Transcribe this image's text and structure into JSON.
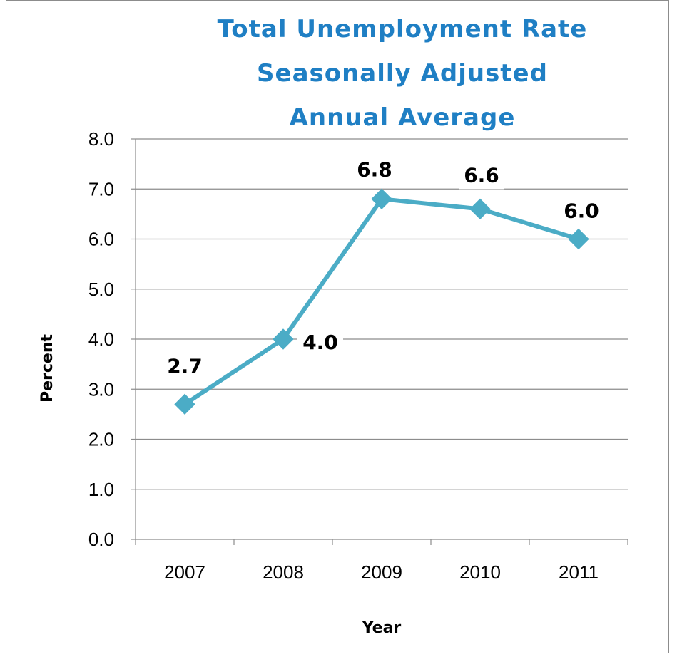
{
  "chart_data": {
    "type": "line",
    "title_lines": [
      "Total Unemployment Rate",
      "Seasonally Adjusted",
      "Annual Average"
    ],
    "xlabel": "Year",
    "ylabel": "Percent",
    "categories": [
      "2007",
      "2008",
      "2009",
      "2010",
      "2011"
    ],
    "values": [
      2.7,
      4.0,
      6.8,
      6.6,
      6.0
    ],
    "data_labels": [
      "2.7",
      "4.0",
      "6.8",
      "6.6",
      "6.0"
    ],
    "ylim": [
      0,
      8
    ],
    "yticks": [
      "0.0",
      "1.0",
      "2.0",
      "3.0",
      "4.0",
      "5.0",
      "6.0",
      "7.0",
      "8.0"
    ],
    "grid": true,
    "legend": "none",
    "line_color": "#4bacc6"
  }
}
